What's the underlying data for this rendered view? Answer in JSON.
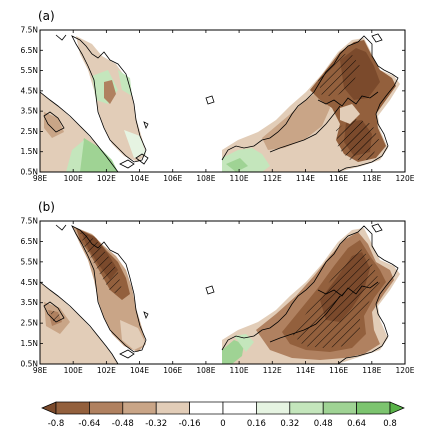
{
  "chart_data": {
    "type": "heatmap",
    "colors": {
      "brown_strong": "#7b4a2c",
      "brown_dark": "#93603d",
      "brown_mid": "#b08160",
      "brown_light": "#c9a587",
      "brown_pale": "#e2cdb8",
      "white": "#ffffff",
      "green_pale": "#e6f4e2",
      "green_light": "#c4e6bc",
      "green_mid": "#9fd394",
      "green_dark": "#7cc46f",
      "green_strong": "#58b247",
      "coast": "#000000"
    },
    "panels": [
      {
        "label": "(a)",
        "lon_range": [
          98,
          120
        ],
        "lat_range": [
          0.5,
          7.5
        ],
        "xticks": [
          "98E",
          "100E",
          "102E",
          "104E",
          "106E",
          "108E",
          "110E",
          "112E",
          "114E",
          "116E",
          "118E",
          "120E"
        ],
        "yticks": [
          "0.5N",
          "1.5N",
          "2.5N",
          "3.5N",
          "4.5N",
          "5.5N",
          "6.5N",
          "7.5N"
        ]
      },
      {
        "label": "(b)",
        "lon_range": [
          98,
          120
        ],
        "lat_range": [
          0.5,
          7.5
        ],
        "xticks": [
          "98E",
          "100E",
          "102E",
          "104E",
          "106E",
          "108E",
          "110E",
          "112E",
          "114E",
          "116E",
          "118E",
          "120E"
        ],
        "yticks": [
          "0.5N",
          "1.5N",
          "2.5N",
          "3.5N",
          "4.5N",
          "5.5N",
          "6.5N",
          "7.5N"
        ]
      }
    ],
    "colorbar": {
      "levels": [
        "-0.8",
        "-0.64",
        "-0.48",
        "-0.32",
        "-0.16",
        "0",
        "0.16",
        "0.32",
        "0.48",
        "0.64",
        "0.8"
      ],
      "colors": [
        "#7b4a2c",
        "#93603d",
        "#b08160",
        "#c9a587",
        "#e2cdb8",
        "#ffffff",
        "#ffffff",
        "#e6f4e2",
        "#c4e6bc",
        "#9fd394",
        "#7cc46f",
        "#58b247"
      ]
    }
  }
}
